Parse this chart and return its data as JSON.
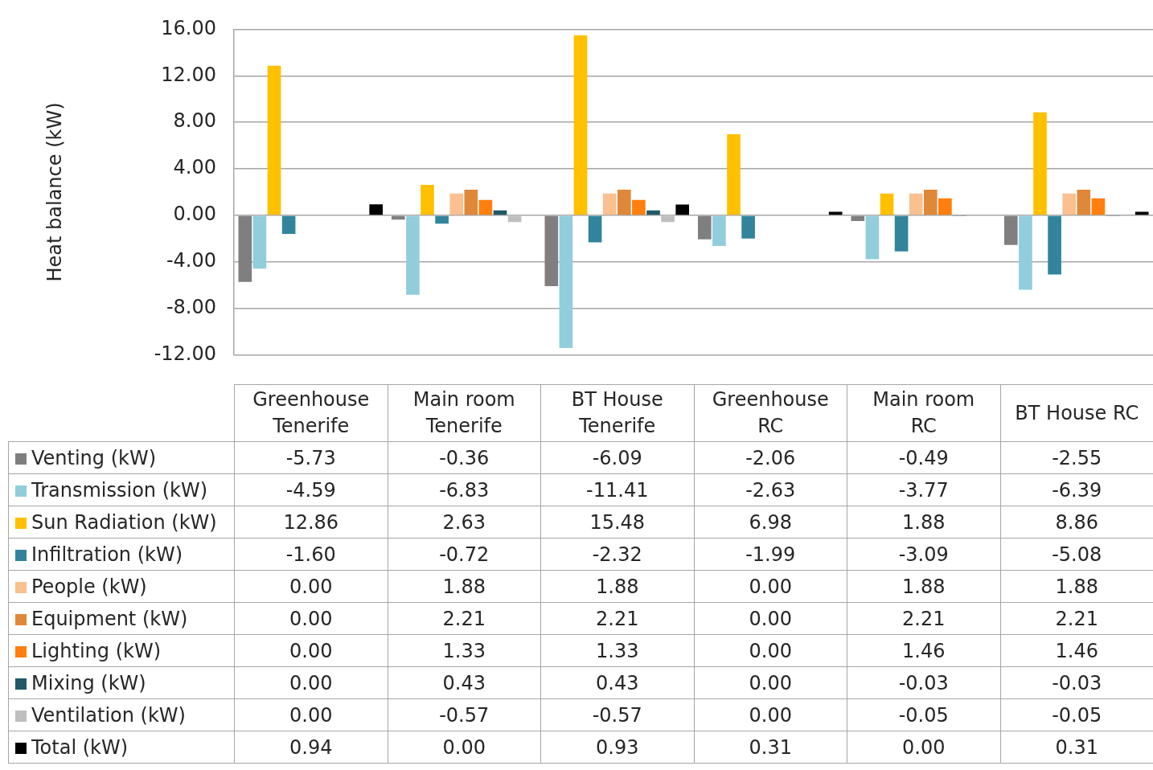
{
  "chart_data": {
    "type": "bar",
    "ylabel": "Heat balance (kW)",
    "categories": [
      "Greenhouse Tenerife",
      "Main room Tenerife",
      "BT House Tenerife",
      "Greenhouse RC",
      "Main room RC",
      "BT House RC"
    ],
    "series": [
      {
        "name": "Venting (kW)",
        "color": "#7f7f7f",
        "values": [
          -5.73,
          -0.36,
          -6.09,
          -2.06,
          -0.49,
          -2.55
        ],
        "value_labels": [
          "-5.73",
          "-0.36",
          "-6.09",
          "-2.06",
          "-0.49",
          "-2.55"
        ]
      },
      {
        "name": "Transmission (kW)",
        "color": "#92cddc",
        "values": [
          -4.59,
          -6.83,
          -11.41,
          -2.63,
          -3.77,
          -6.39
        ],
        "value_labels": [
          "-4.59",
          "-6.83",
          "-11.41",
          "-2.63",
          "-3.77",
          "-6.39"
        ]
      },
      {
        "name": "Sun Radiation (kW)",
        "color": "#ffc000",
        "values": [
          12.86,
          2.63,
          15.48,
          6.98,
          1.88,
          8.86
        ],
        "value_labels": [
          "12.86",
          "2.63",
          "15.48",
          "6.98",
          "1.88",
          "8.86"
        ]
      },
      {
        "name": "Infiltration (kW)",
        "color": "#31849b",
        "values": [
          -1.6,
          -0.72,
          -2.32,
          -1.99,
          -3.09,
          -5.08
        ],
        "value_labels": [
          "-1.60",
          "-0.72",
          "-2.32",
          "-1.99",
          "-3.09",
          "-5.08"
        ]
      },
      {
        "name": "People (kW)",
        "color": "#fac090",
        "values": [
          0,
          1.88,
          1.88,
          0,
          1.88,
          1.88
        ],
        "value_labels": [
          "0.00",
          "1.88",
          "1.88",
          "0.00",
          "1.88",
          "1.88"
        ]
      },
      {
        "name": "Equipment (kW)",
        "color": "#e0883a",
        "values": [
          0,
          2.21,
          2.21,
          0,
          2.21,
          2.21
        ],
        "value_labels": [
          "0.00",
          "2.21",
          "2.21",
          "0.00",
          "2.21",
          "2.21"
        ]
      },
      {
        "name": "Lighting (kW)",
        "color": "#ff7f0e",
        "values": [
          0,
          1.33,
          1.33,
          0,
          1.46,
          1.46
        ],
        "value_labels": [
          "0.00",
          "1.33",
          "1.33",
          "0.00",
          "1.46",
          "1.46"
        ]
      },
      {
        "name": "Mixing (kW)",
        "color": "#215968",
        "values": [
          0,
          0.43,
          0.43,
          0,
          -0.03,
          -0.03
        ],
        "value_labels": [
          "0.00",
          "0.43",
          "0.43",
          "0.00",
          "-0.03",
          "-0.03"
        ]
      },
      {
        "name": "Ventilation (kW)",
        "color": "#bfbfbf",
        "values": [
          0,
          -0.57,
          -0.57,
          0,
          -0.05,
          -0.05
        ],
        "value_labels": [
          "0.00",
          "-0.57",
          "-0.57",
          "0.00",
          "-0.05",
          "-0.05"
        ]
      },
      {
        "name": "Total (kW)",
        "color": "#000000",
        "values": [
          0.94,
          0,
          0.93,
          0.31,
          0,
          0.31
        ],
        "value_labels": [
          "0.94",
          "0.00",
          "0.93",
          "0.31",
          "0.00",
          "0.31"
        ]
      }
    ],
    "ylim": [
      -12,
      16
    ],
    "yticks": [
      {
        "value": -12,
        "label": "-12.00"
      },
      {
        "value": -8,
        "label": "-8.00"
      },
      {
        "value": -4,
        "label": "-4.00"
      },
      {
        "value": 0,
        "label": "0.00"
      },
      {
        "value": 4,
        "label": "4.00"
      },
      {
        "value": 8,
        "label": "8.00"
      },
      {
        "value": 12,
        "label": "12.00"
      },
      {
        "value": 16,
        "label": "16.00"
      }
    ],
    "grid": "y",
    "legend": "bottom left"
  }
}
